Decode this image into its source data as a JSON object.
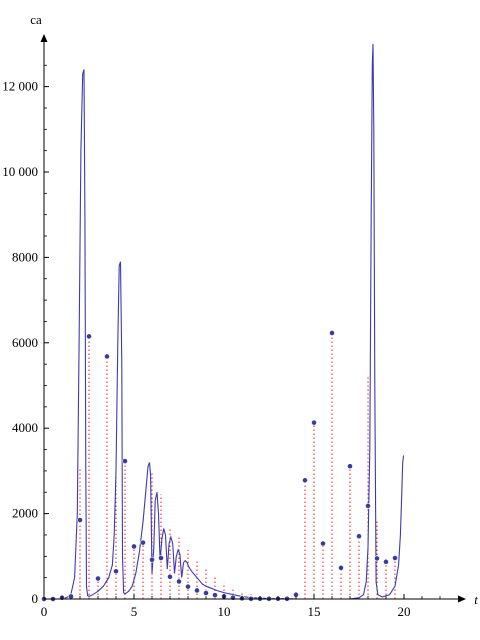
{
  "chart_data": {
    "type": "line",
    "title": "",
    "xlabel": "t",
    "ylabel": "ca",
    "xlim": [
      0,
      23
    ],
    "ylim": [
      0,
      13000
    ],
    "x_ticks": [
      0,
      5,
      10,
      15,
      20
    ],
    "x_tick_labels": [
      "0",
      "5",
      "10",
      "15",
      "20"
    ],
    "y_ticks": [
      0,
      2000,
      4000,
      6000,
      8000,
      10000,
      12000
    ],
    "y_tick_labels": [
      "0",
      "2000",
      "4000",
      "6000",
      "8000",
      "10 000",
      "12 000"
    ],
    "grid": false,
    "colors": {
      "curve": "#3b3bb0",
      "stems": "#e02020",
      "points": "#3b3b9a",
      "axes": "#000000"
    },
    "series": [
      {
        "style": "solid-line",
        "x": [
          0,
          0.5,
          1.0,
          1.3,
          1.5,
          1.7,
          1.85,
          1.95,
          2.05,
          2.15,
          2.22,
          2.27,
          2.32,
          2.36,
          2.42,
          2.5,
          2.7,
          3.0,
          3.3,
          3.6,
          3.8,
          3.9,
          4.0,
          4.1,
          4.18,
          4.25,
          4.32,
          4.36,
          4.42,
          4.5,
          4.7,
          4.9,
          5.1,
          5.3,
          5.5,
          5.65,
          5.78,
          5.86,
          5.92,
          6.0,
          6.1,
          6.18,
          6.28,
          6.36,
          6.45,
          6.55,
          6.65,
          6.75,
          6.85,
          6.95,
          7.05,
          7.15,
          7.25,
          7.35,
          7.45,
          7.55,
          7.65,
          7.75,
          7.85,
          7.95,
          8.05,
          8.2,
          8.4,
          8.6,
          8.8,
          9.0,
          9.3,
          9.6,
          10.0,
          10.5,
          11.0,
          11.5,
          12.0,
          12.5,
          13.0,
          13.5,
          14.0,
          14.5,
          15.0,
          15.5,
          16.0,
          16.5,
          17.0,
          17.5,
          17.75,
          17.9,
          18.0,
          18.1,
          18.18,
          18.24,
          18.28,
          18.32,
          18.38,
          18.45,
          18.55,
          18.8,
          19.2,
          19.5,
          19.7,
          19.8,
          19.88,
          19.93,
          19.97,
          20.0
        ],
        "y": [
          0,
          0,
          0,
          40,
          120,
          500,
          2000,
          6000,
          10500,
          12300,
          12400,
          9000,
          3000,
          300,
          80,
          60,
          100,
          180,
          300,
          500,
          800,
          1500,
          3000,
          6000,
          7800,
          7900,
          5500,
          1000,
          150,
          120,
          180,
          300,
          600,
          1100,
          1800,
          2500,
          3100,
          3200,
          2900,
          600,
          1200,
          2300,
          2500,
          2000,
          900,
          1400,
          1650,
          1500,
          700,
          1300,
          1450,
          1300,
          600,
          1000,
          1150,
          1050,
          500,
          850,
          900,
          850,
          750,
          650,
          550,
          450,
          350,
          300,
          250,
          200,
          150,
          100,
          60,
          30,
          20,
          10,
          5,
          10,
          0,
          0,
          0,
          0,
          0,
          0,
          0,
          30,
          100,
          400,
          1200,
          3500,
          9000,
          12500,
          13000,
          11000,
          5000,
          400,
          100,
          50,
          100,
          300,
          800,
          1500,
          2500,
          3200,
          3350,
          3350
        ]
      },
      {
        "style": "points-with-dotted-stems",
        "x": [
          0.0,
          0.5,
          1.0,
          1.5,
          2.0,
          2.5,
          3.0,
          3.5,
          4.0,
          4.5,
          5.0,
          5.5,
          6.0,
          6.5,
          7.0,
          7.5,
          8.0,
          8.5,
          9.0,
          9.5,
          10.0,
          10.5,
          11.0,
          11.5,
          12.0,
          12.5,
          13.0,
          13.5,
          14.0,
          14.5,
          15.0,
          15.5,
          16.0,
          16.5,
          17.0,
          17.5,
          18.0,
          18.5,
          19.0,
          19.5
        ],
        "y": [
          0,
          0,
          30,
          60,
          1850,
          6150,
          480,
          5680,
          650,
          3230,
          1230,
          1320,
          920,
          960,
          520,
          410,
          290,
          200,
          140,
          90,
          60,
          30,
          15,
          5,
          5,
          5,
          5,
          5,
          100,
          2780,
          4130,
          1300,
          6230,
          730,
          3110,
          1470,
          2180,
          950,
          870,
          960
        ],
        "stem_tops": [
          0,
          0,
          30,
          60,
          3050,
          6150,
          480,
          5680,
          2850,
          3230,
          1230,
          1320,
          2980,
          2450,
          1650,
          1450,
          1150,
          900,
          700,
          520,
          380,
          260,
          170,
          110,
          60,
          30,
          15,
          8,
          100,
          2780,
          4130,
          1300,
          6230,
          730,
          3110,
          1470,
          5200,
          1850,
          870,
          960
        ]
      }
    ]
  }
}
